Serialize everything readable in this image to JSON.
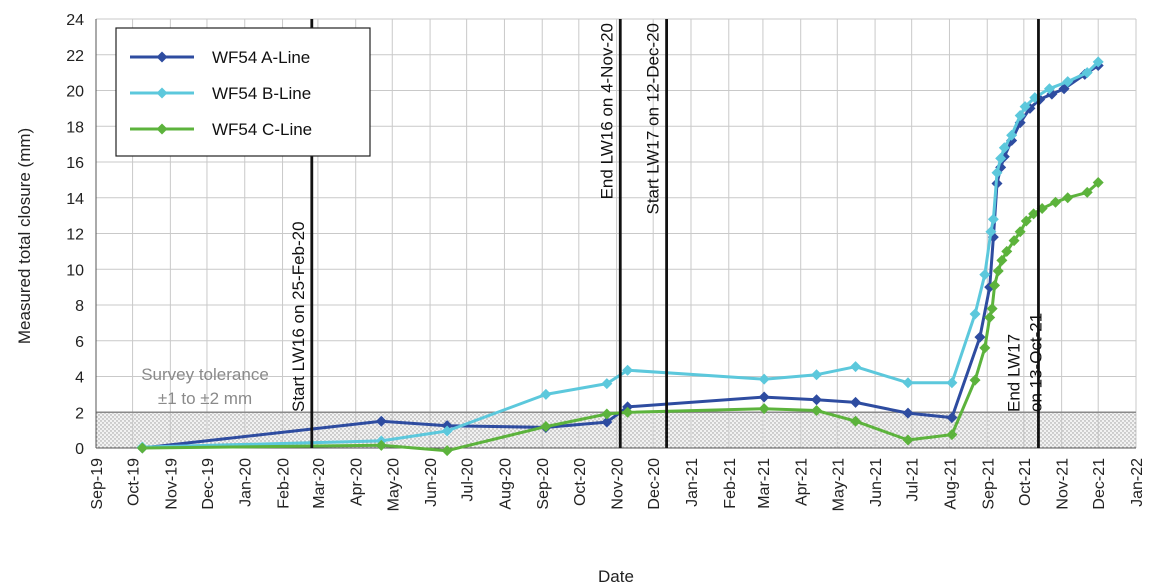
{
  "chart_data": {
    "type": "line",
    "xlabel": "Date",
    "ylabel": "Measured total closure (mm)",
    "ylim": [
      0,
      24
    ],
    "yticks": [
      0,
      2,
      4,
      6,
      8,
      10,
      12,
      14,
      16,
      18,
      20,
      22,
      24
    ],
    "xlim": [
      "2019-09-01",
      "2022-01-01"
    ],
    "xticks": [
      {
        "date": "2019-09-01",
        "label": "Sep-19"
      },
      {
        "date": "2019-10-01",
        "label": "Oct-19"
      },
      {
        "date": "2019-11-01",
        "label": "Nov-19"
      },
      {
        "date": "2019-12-01",
        "label": "Dec-19"
      },
      {
        "date": "2020-01-01",
        "label": "Jan-20"
      },
      {
        "date": "2020-02-01",
        "label": "Feb-20"
      },
      {
        "date": "2020-03-01",
        "label": "Mar-20"
      },
      {
        "date": "2020-04-01",
        "label": "Apr-20"
      },
      {
        "date": "2020-05-01",
        "label": "May-20"
      },
      {
        "date": "2020-06-01",
        "label": "Jun-20"
      },
      {
        "date": "2020-07-01",
        "label": "Jul-20"
      },
      {
        "date": "2020-08-01",
        "label": "Aug-20"
      },
      {
        "date": "2020-09-01",
        "label": "Sep-20"
      },
      {
        "date": "2020-10-01",
        "label": "Oct-20"
      },
      {
        "date": "2020-11-01",
        "label": "Nov-20"
      },
      {
        "date": "2020-12-01",
        "label": "Dec-20"
      },
      {
        "date": "2021-01-01",
        "label": "Jan-21"
      },
      {
        "date": "2021-02-01",
        "label": "Feb-21"
      },
      {
        "date": "2021-03-01",
        "label": "Mar-21"
      },
      {
        "date": "2021-04-01",
        "label": "Apr-21"
      },
      {
        "date": "2021-05-01",
        "label": "May-21"
      },
      {
        "date": "2021-06-01",
        "label": "Jun-21"
      },
      {
        "date": "2021-07-01",
        "label": "Jul-21"
      },
      {
        "date": "2021-08-01",
        "label": "Aug-21"
      },
      {
        "date": "2021-09-01",
        "label": "Sep-21"
      },
      {
        "date": "2021-10-01",
        "label": "Oct-21"
      },
      {
        "date": "2021-11-01",
        "label": "Nov-21"
      },
      {
        "date": "2021-12-01",
        "label": "Dec-21"
      },
      {
        "date": "2022-01-01",
        "label": "Jan-22"
      }
    ],
    "grid": true,
    "legend_position": "top-left",
    "series": [
      {
        "name": "WF54 A-Line",
        "color": "#2e4ca0",
        "points": [
          {
            "x": "2019-10-09",
            "y": 0
          },
          {
            "x": "2020-04-22",
            "y": 1.5
          },
          {
            "x": "2020-06-15",
            "y": 1.25
          },
          {
            "x": "2020-09-04",
            "y": 1.15
          },
          {
            "x": "2020-10-24",
            "y": 1.45
          },
          {
            "x": "2020-11-10",
            "y": 2.3
          },
          {
            "x": "2021-03-02",
            "y": 2.85
          },
          {
            "x": "2021-04-14",
            "y": 2.7
          },
          {
            "x": "2021-05-16",
            "y": 2.55
          },
          {
            "x": "2021-06-28",
            "y": 1.95
          },
          {
            "x": "2021-08-03",
            "y": 1.7
          },
          {
            "x": "2021-08-26",
            "y": 6.2
          },
          {
            "x": "2021-09-03",
            "y": 9.0
          },
          {
            "x": "2021-09-06",
            "y": 11.8
          },
          {
            "x": "2021-09-09",
            "y": 14.8
          },
          {
            "x": "2021-09-12",
            "y": 15.7
          },
          {
            "x": "2021-09-15",
            "y": 16.3
          },
          {
            "x": "2021-09-21",
            "y": 17.2
          },
          {
            "x": "2021-09-28",
            "y": 18.2
          },
          {
            "x": "2021-10-06",
            "y": 19.0
          },
          {
            "x": "2021-10-14",
            "y": 19.5
          },
          {
            "x": "2021-10-24",
            "y": 19.8
          },
          {
            "x": "2021-11-03",
            "y": 20.1
          },
          {
            "x": "2021-11-20",
            "y": 20.9
          },
          {
            "x": "2021-12-01",
            "y": 21.4
          }
        ]
      },
      {
        "name": "WF54 B-Line",
        "color": "#5cc8dc",
        "points": [
          {
            "x": "2019-10-09",
            "y": 0.05
          },
          {
            "x": "2020-04-22",
            "y": 0.4
          },
          {
            "x": "2020-06-15",
            "y": 0.95
          },
          {
            "x": "2020-09-04",
            "y": 3.0
          },
          {
            "x": "2020-10-24",
            "y": 3.6
          },
          {
            "x": "2020-11-10",
            "y": 4.35
          },
          {
            "x": "2021-03-02",
            "y": 3.85
          },
          {
            "x": "2021-04-14",
            "y": 4.1
          },
          {
            "x": "2021-05-16",
            "y": 4.55
          },
          {
            "x": "2021-06-28",
            "y": 3.65
          },
          {
            "x": "2021-08-03",
            "y": 3.65
          },
          {
            "x": "2021-08-22",
            "y": 7.5
          },
          {
            "x": "2021-08-30",
            "y": 9.7
          },
          {
            "x": "2021-09-04",
            "y": 12.1
          },
          {
            "x": "2021-09-06",
            "y": 12.8
          },
          {
            "x": "2021-09-09",
            "y": 15.4
          },
          {
            "x": "2021-09-12",
            "y": 16.2
          },
          {
            "x": "2021-09-15",
            "y": 16.8
          },
          {
            "x": "2021-09-21",
            "y": 17.5
          },
          {
            "x": "2021-09-28",
            "y": 18.6
          },
          {
            "x": "2021-10-02",
            "y": 19.1
          },
          {
            "x": "2021-10-10",
            "y": 19.6
          },
          {
            "x": "2021-10-22",
            "y": 20.1
          },
          {
            "x": "2021-11-06",
            "y": 20.5
          },
          {
            "x": "2021-11-22",
            "y": 21.0
          },
          {
            "x": "2021-12-01",
            "y": 21.6
          }
        ]
      },
      {
        "name": "WF54 C-Line",
        "color": "#5cb33c",
        "points": [
          {
            "x": "2019-10-09",
            "y": 0
          },
          {
            "x": "2020-04-22",
            "y": 0.15
          },
          {
            "x": "2020-06-15",
            "y": -0.15
          },
          {
            "x": "2020-09-04",
            "y": 1.2
          },
          {
            "x": "2020-10-24",
            "y": 1.9
          },
          {
            "x": "2020-11-10",
            "y": 2.0
          },
          {
            "x": "2021-03-02",
            "y": 2.2
          },
          {
            "x": "2021-04-14",
            "y": 2.1
          },
          {
            "x": "2021-05-16",
            "y": 1.5
          },
          {
            "x": "2021-06-28",
            "y": 0.45
          },
          {
            "x": "2021-08-03",
            "y": 0.75
          },
          {
            "x": "2021-08-22",
            "y": 3.8
          },
          {
            "x": "2021-08-30",
            "y": 5.6
          },
          {
            "x": "2021-09-03",
            "y": 7.3
          },
          {
            "x": "2021-09-05",
            "y": 7.8
          },
          {
            "x": "2021-09-07",
            "y": 9.1
          },
          {
            "x": "2021-09-10",
            "y": 9.9
          },
          {
            "x": "2021-09-13",
            "y": 10.5
          },
          {
            "x": "2021-09-17",
            "y": 11.0
          },
          {
            "x": "2021-09-23",
            "y": 11.6
          },
          {
            "x": "2021-09-28",
            "y": 12.1
          },
          {
            "x": "2021-10-03",
            "y": 12.7
          },
          {
            "x": "2021-10-09",
            "y": 13.1
          },
          {
            "x": "2021-10-16",
            "y": 13.4
          },
          {
            "x": "2021-10-27",
            "y": 13.75
          },
          {
            "x": "2021-11-06",
            "y": 14.0
          },
          {
            "x": "2021-11-22",
            "y": 14.3
          },
          {
            "x": "2021-12-01",
            "y": 14.85
          }
        ]
      }
    ],
    "events": [
      {
        "date": "2020-02-25",
        "lines": [
          "Start LW16 on 25-Feb-20"
        ],
        "anchor": "bottom"
      },
      {
        "date": "2020-11-04",
        "lines": [
          "End LW16 on 4-Nov-20"
        ],
        "anchor": "top"
      },
      {
        "date": "2020-12-12",
        "lines": [
          "Start LW17 on 12-Dec-20"
        ],
        "anchor": "top"
      },
      {
        "date": "2021-10-13",
        "lines": [
          "End LW17",
          "on 13-Oct-21"
        ],
        "anchor": "bottom"
      }
    ],
    "tolerance_band": {
      "y_range": [
        0,
        2
      ],
      "lines": [
        "Survey tolerance",
        "±1 to ±2 mm"
      ],
      "color": "#8a8a8a"
    }
  }
}
